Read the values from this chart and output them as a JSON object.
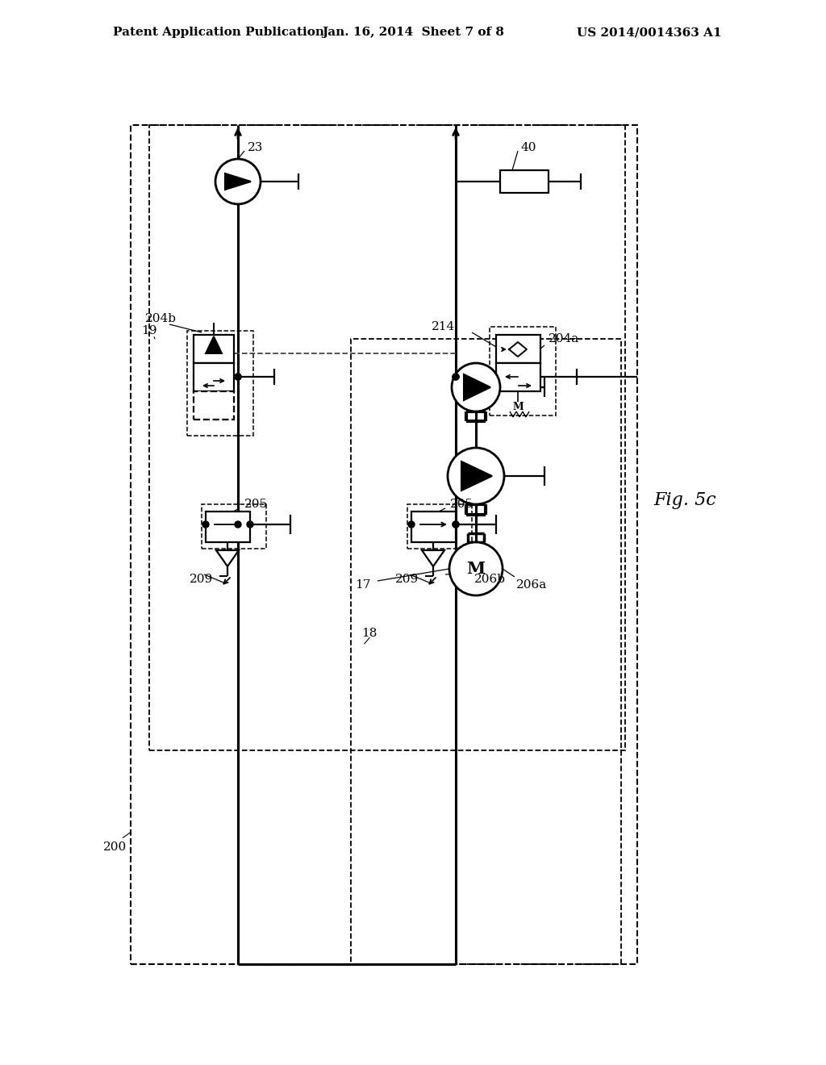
{
  "bg": "#ffffff",
  "header_left": "Patent Application Publication",
  "header_mid": "Jan. 16, 2014  Sheet 7 of 8",
  "header_right": "US 2014/0014363 A1",
  "fig_caption": "Fig. 5c"
}
